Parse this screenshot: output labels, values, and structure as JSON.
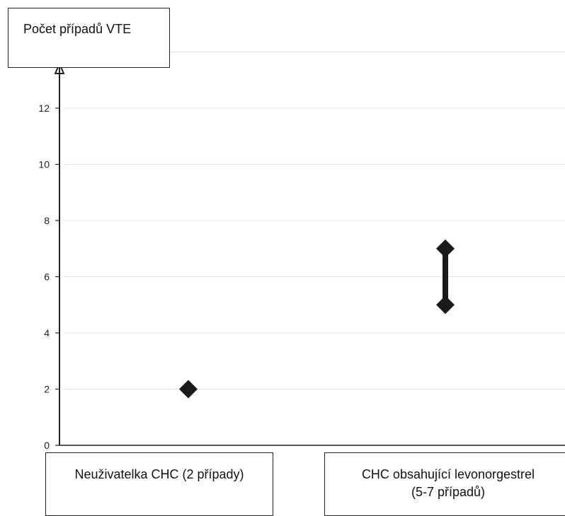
{
  "chart_data": {
    "type": "scatter",
    "title": "",
    "ylabel": "Počet případů VTE",
    "xlabel": "",
    "ylim": [
      0,
      14
    ],
    "yticks": [
      0,
      2,
      4,
      6,
      8,
      10,
      12
    ],
    "grid": true,
    "categories": [
      [
        "Neuživatelka CHC (2 případy)"
      ],
      [
        "CHC obsahující levonorgestrel",
        "(5-7 případů)"
      ]
    ],
    "points": [
      {
        "category_index": 0,
        "low": 2,
        "high": 2
      },
      {
        "category_index": 1,
        "low": 5,
        "high": 7
      }
    ],
    "marker_color": "#1a1a1a",
    "grid_color": "#e6e6e6",
    "axis_color": "#222222"
  }
}
